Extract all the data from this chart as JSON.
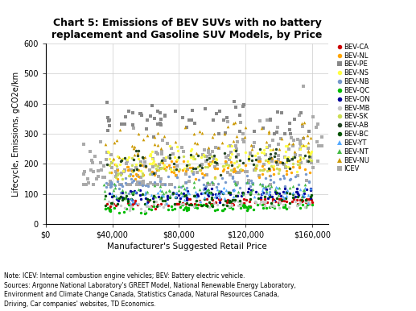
{
  "title": "Chart 5: Emissions of BEV SUVs with no battery\nreplacement and Gasoline SUV Models, by Price",
  "xlabel": "Manufacturer's Suggested Retail Price",
  "ylabel": "Lifecycle, Emissions, gCO2e/km",
  "note": "Note: ICEV: Internal combustion engine vehicles; BEV: Battery electric vehicle.\nSources: Argonne National Laboratory's GREET Model, National Renewable Energy Laboratory,\nEnvironment and Climate Change Canada, Statistics Canada, Natural Resources Canada,\nDriving, Car companies' websites, TD Economics.",
  "xlim": [
    0,
    170000
  ],
  "ylim": [
    0,
    600
  ],
  "xticks": [
    0,
    40000,
    80000,
    120000,
    160000
  ],
  "xtick_labels": [
    "$0",
    "$40,000",
    "$80,000",
    "$120,000",
    "$160,000"
  ],
  "yticks": [
    0,
    100,
    200,
    300,
    400,
    500,
    600
  ],
  "bev_series": [
    {
      "label": "BEV-CA",
      "color": "#CC0000",
      "marker": "o",
      "base": 65,
      "spread": 15,
      "n": 85
    },
    {
      "label": "BEV-NL",
      "color": "#FFA500",
      "marker": "o",
      "base": 175,
      "spread": 28,
      "n": 85
    },
    {
      "label": "BEV-PE",
      "color": "#888888",
      "marker": "s",
      "base": 340,
      "spread": 55,
      "n": 65
    },
    {
      "label": "BEV-NS",
      "color": "#FFFF44",
      "marker": "o",
      "base": 210,
      "spread": 42,
      "n": 85
    },
    {
      "label": "BEV-NB",
      "color": "#7799CC",
      "marker": "o",
      "base": 128,
      "spread": 32,
      "n": 85
    },
    {
      "label": "BEV-QC",
      "color": "#00BB00",
      "marker": "o",
      "base": 48,
      "spread": 14,
      "n": 85
    },
    {
      "label": "BEV-ON",
      "color": "#000099",
      "marker": "o",
      "base": 92,
      "spread": 22,
      "n": 85
    },
    {
      "label": "BEV-MB",
      "color": "#C8C8C8",
      "marker": "o",
      "base": 56,
      "spread": 16,
      "n": 65
    },
    {
      "label": "BEV-SK",
      "color": "#CCDD55",
      "marker": "o",
      "base": 182,
      "spread": 36,
      "n": 65
    },
    {
      "label": "BEV-AB",
      "color": "#224422",
      "marker": "o",
      "base": 200,
      "spread": 40,
      "n": 65
    },
    {
      "label": "BEV-BC",
      "color": "#005500",
      "marker": "o",
      "base": 78,
      "spread": 23,
      "n": 85
    },
    {
      "label": "BEV-YT",
      "color": "#55AAFF",
      "marker": "^",
      "base": 92,
      "spread": 26,
      "n": 65
    },
    {
      "label": "BEV-NT",
      "color": "#44BB44",
      "marker": "^",
      "base": 108,
      "spread": 26,
      "n": 65
    },
    {
      "label": "BEV-NU",
      "color": "#CC9900",
      "marker": "^",
      "base": 268,
      "spread": 58,
      "n": 65
    }
  ],
  "icev": {
    "color": "#AAAAAA",
    "marker": "s",
    "n": 220,
    "price_min": 22000,
    "price_max": 168000,
    "emit_min": 130,
    "emit_max": 560,
    "slope": 0.00075
  }
}
